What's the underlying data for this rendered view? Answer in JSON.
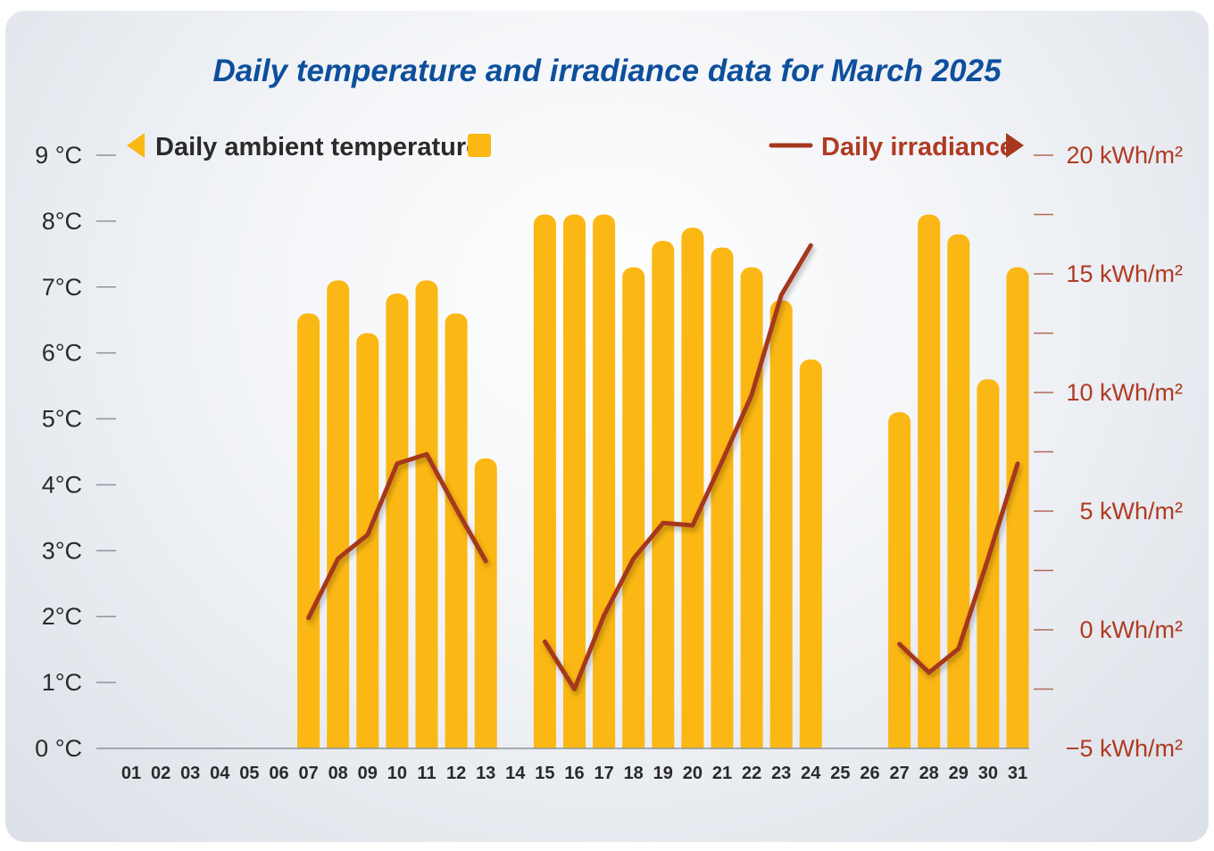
{
  "chart_data": {
    "type": "bar",
    "title": "Daily temperature and irradiance data for March 2025",
    "categories": [
      "01",
      "02",
      "03",
      "04",
      "05",
      "06",
      "07",
      "08",
      "09",
      "10",
      "11",
      "12",
      "13",
      "14",
      "15",
      "16",
      "17",
      "18",
      "19",
      "20",
      "21",
      "22",
      "23",
      "24",
      "25",
      "26",
      "27",
      "28",
      "29",
      "30",
      "31"
    ],
    "series": [
      {
        "name": "Daily ambient temperature",
        "type": "bar",
        "axis": "left",
        "unit": "°C",
        "color": "#fbb713",
        "values": [
          null,
          null,
          null,
          null,
          null,
          null,
          6.6,
          7.1,
          6.3,
          6.9,
          7.1,
          6.6,
          4.4,
          null,
          8.1,
          8.1,
          8.1,
          7.3,
          7.7,
          7.9,
          7.6,
          7.3,
          6.8,
          5.9,
          null,
          null,
          5.1,
          8.1,
          7.8,
          5.6,
          7.3
        ]
      },
      {
        "name": "Daily irradiance",
        "type": "line",
        "axis": "right",
        "unit": "kWh/m²",
        "color": "#a5381e",
        "values": [
          null,
          null,
          null,
          null,
          null,
          null,
          0.5,
          3.0,
          4.0,
          7.0,
          7.4,
          5.1,
          2.9,
          null,
          -0.5,
          -2.5,
          0.6,
          3.0,
          4.5,
          4.4,
          7.1,
          9.9,
          14.1,
          16.2,
          null,
          null,
          -0.6,
          -1.8,
          -0.8,
          3.0,
          7.0
        ]
      }
    ],
    "left_axis": {
      "ylim": [
        0,
        9
      ],
      "ticks": [
        "0 °C",
        "1°C",
        "2°C",
        "3°C",
        "4°C",
        "5°C",
        "6°C",
        "7°C",
        "8°C",
        "9 °C"
      ]
    },
    "right_axis": {
      "ylim": [
        -5,
        20
      ],
      "ticks": [
        {
          "value": -5,
          "label": "−5 kWh/m²"
        },
        {
          "value": 0,
          "label": "0 kWh/m²"
        },
        {
          "value": 5,
          "label": "5 kWh/m²"
        },
        {
          "value": 10,
          "label": "10 kWh/m²"
        },
        {
          "value": 15,
          "label": "15 kWh/m²"
        },
        {
          "value": 20,
          "label": "20 kWh/m²"
        }
      ]
    },
    "legend": {
      "left_label": "Daily ambient temperature",
      "right_label": "Daily irradiance",
      "placement": "top"
    }
  }
}
